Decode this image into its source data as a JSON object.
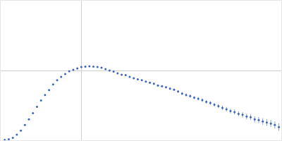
{
  "chart_data": {
    "type": "scatter",
    "color": "#3a66b8",
    "marker": "circle",
    "x": [
      0.005,
      0.01,
      0.015,
      0.02,
      0.025,
      0.03,
      0.035,
      0.04,
      0.045,
      0.05,
      0.055,
      0.06,
      0.065,
      0.07,
      0.075,
      0.08,
      0.085,
      0.09,
      0.095,
      0.1,
      0.105,
      0.11,
      0.115,
      0.12,
      0.125,
      0.13,
      0.135,
      0.14,
      0.145,
      0.15,
      0.155,
      0.16,
      0.165,
      0.17,
      0.175,
      0.18,
      0.185,
      0.19,
      0.195,
      0.2,
      0.205,
      0.21,
      0.215,
      0.22,
      0.225,
      0.23,
      0.235,
      0.24,
      0.245,
      0.25,
      0.255,
      0.26,
      0.265,
      0.27,
      0.275,
      0.28,
      0.285,
      0.29,
      0.295,
      0.3,
      0.305,
      0.31,
      0.315,
      0.32,
      0.325,
      0.33,
      0.335,
      0.34,
      0.345
    ],
    "values": [
      0.005,
      0.015,
      0.035,
      0.08,
      0.14,
      0.22,
      0.3,
      0.39,
      0.48,
      0.57,
      0.65,
      0.72,
      0.8,
      0.86,
      0.91,
      0.95,
      0.99,
      1.01,
      1.03,
      1.05,
      1.055,
      1.06,
      1.055,
      1.05,
      1.04,
      1.02,
      1.0,
      0.985,
      0.96,
      0.94,
      0.935,
      0.91,
      0.89,
      0.875,
      0.86,
      0.84,
      0.825,
      0.81,
      0.785,
      0.775,
      0.76,
      0.74,
      0.725,
      0.7,
      0.67,
      0.65,
      0.635,
      0.61,
      0.595,
      0.575,
      0.55,
      0.535,
      0.51,
      0.49,
      0.465,
      0.445,
      0.42,
      0.405,
      0.38,
      0.365,
      0.34,
      0.33,
      0.3,
      0.29,
      0.27,
      0.255,
      0.24,
      0.22,
      0.19
    ],
    "errors": [
      0.003,
      0.003,
      0.003,
      0.003,
      0.003,
      0.003,
      0.003,
      0.003,
      0.004,
      0.004,
      0.004,
      0.004,
      0.004,
      0.004,
      0.004,
      0.005,
      0.005,
      0.005,
      0.005,
      0.005,
      0.006,
      0.006,
      0.006,
      0.007,
      0.007,
      0.007,
      0.008,
      0.008,
      0.009,
      0.009,
      0.01,
      0.01,
      0.011,
      0.011,
      0.012,
      0.012,
      0.013,
      0.014,
      0.014,
      0.015,
      0.016,
      0.017,
      0.018,
      0.019,
      0.02,
      0.021,
      0.022,
      0.023,
      0.024,
      0.025,
      0.026,
      0.027,
      0.028,
      0.03,
      0.031,
      0.032,
      0.034,
      0.035,
      0.036,
      0.038,
      0.04,
      0.041,
      0.043,
      0.045,
      0.047,
      0.049,
      0.051,
      0.053,
      0.055
    ],
    "xlim": [
      0,
      0.348
    ],
    "xticks": [
      0.1
    ],
    "ylim": [
      0,
      2
    ],
    "yticks": [
      1
    ],
    "grid": true,
    "tick_labels": false
  }
}
